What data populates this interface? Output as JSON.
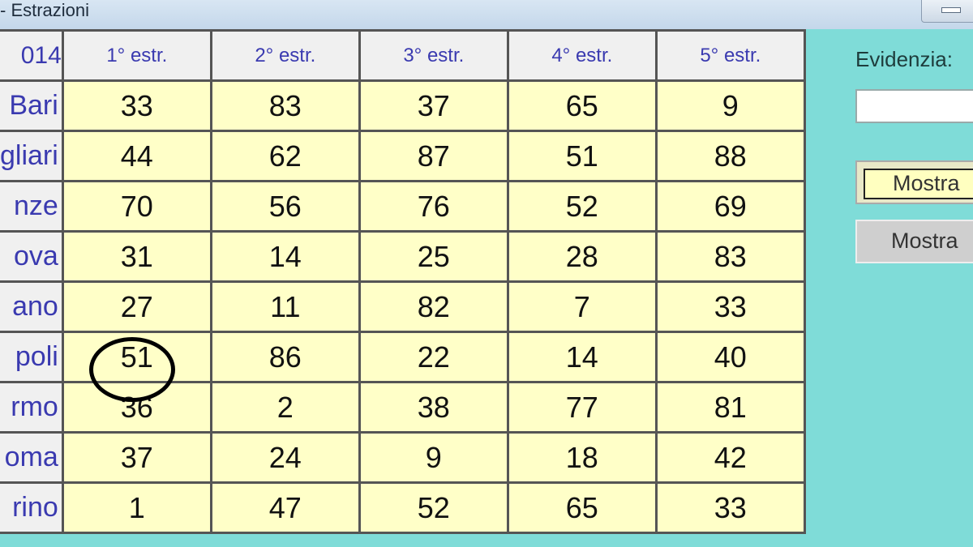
{
  "window": {
    "title": "- Estrazioni"
  },
  "table": {
    "corner": "014",
    "headers": [
      "1° estr.",
      "2° estr.",
      "3° estr.",
      "4° estr.",
      "5° estr."
    ],
    "rows": [
      {
        "city": "Bari",
        "values": [
          "33",
          "83",
          "37",
          "65",
          "9"
        ]
      },
      {
        "city": "gliari",
        "values": [
          "44",
          "62",
          "87",
          "51",
          "88"
        ]
      },
      {
        "city": "nze",
        "values": [
          "70",
          "56",
          "76",
          "52",
          "69"
        ]
      },
      {
        "city": "ova",
        "values": [
          "31",
          "14",
          "25",
          "28",
          "83"
        ]
      },
      {
        "city": "ano",
        "values": [
          "27",
          "11",
          "82",
          "7",
          "33"
        ]
      },
      {
        "city": "poli",
        "values": [
          "51",
          "86",
          "22",
          "14",
          "40"
        ]
      },
      {
        "city": "rmo",
        "values": [
          "36",
          "2",
          "38",
          "77",
          "81"
        ]
      },
      {
        "city": "oma",
        "values": [
          "37",
          "24",
          "9",
          "18",
          "42"
        ]
      },
      {
        "city": "rino",
        "values": [
          "1",
          "47",
          "52",
          "65",
          "33"
        ]
      }
    ],
    "highlighted": {
      "row": 5,
      "col": 0,
      "value": "51"
    }
  },
  "side": {
    "evidenzia_label": "Evidenzia:",
    "evidenzia_value": "",
    "button1": "Mostra",
    "button2": "Mostra"
  }
}
